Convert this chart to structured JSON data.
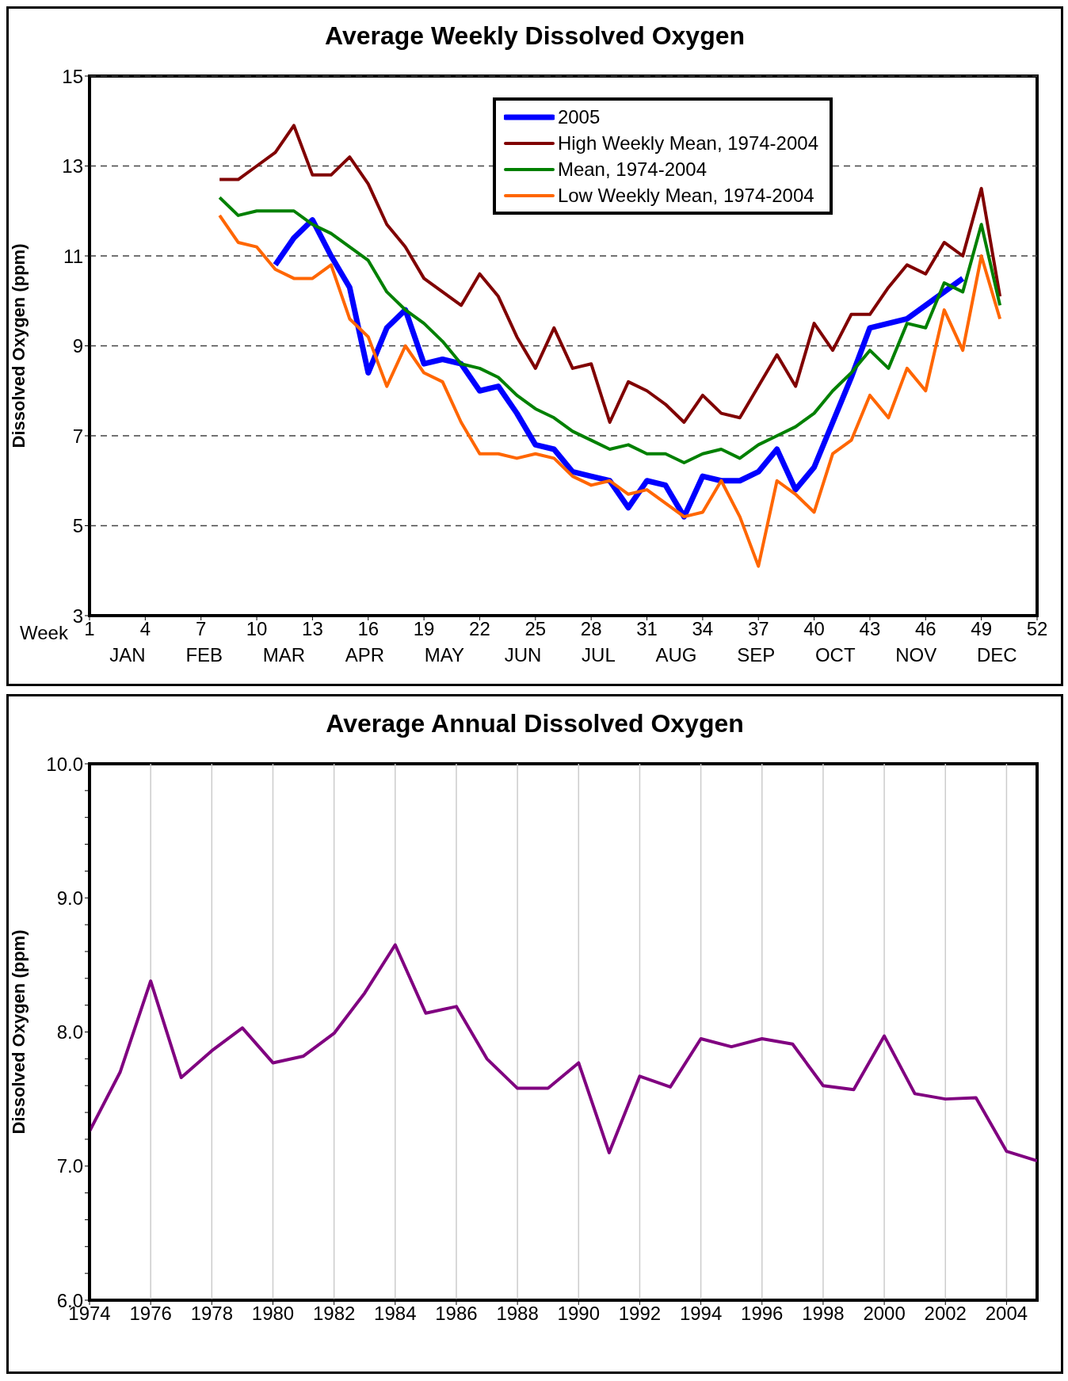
{
  "chart_data": [
    {
      "type": "line",
      "title": "Average Weekly Dissolved Oxygen",
      "xlabel": "Week",
      "ylabel": "Dissolved Oxygen (ppm)",
      "x": [
        8,
        9,
        10,
        11,
        12,
        13,
        14,
        15,
        16,
        17,
        18,
        19,
        20,
        21,
        22,
        23,
        24,
        25,
        26,
        27,
        28,
        29,
        30,
        31,
        32,
        33,
        34,
        35,
        36,
        37,
        38,
        39,
        40,
        41,
        42,
        43,
        44,
        45,
        46,
        47,
        48,
        49,
        50
      ],
      "series": [
        {
          "name": "2005",
          "color": "#0000ff",
          "x": [
            11,
            12,
            13,
            14,
            15,
            16,
            17,
            18,
            19,
            20,
            21,
            22,
            23,
            24,
            25,
            26,
            27,
            28,
            29,
            30,
            31,
            32,
            33,
            34,
            35,
            36,
            37,
            38,
            39,
            40,
            41,
            42,
            43,
            44,
            45,
            46,
            47,
            48
          ],
          "values": [
            10.8,
            11.4,
            11.8,
            11.0,
            10.3,
            8.4,
            9.4,
            9.8,
            8.6,
            8.7,
            8.6,
            8.0,
            8.1,
            7.5,
            6.8,
            6.7,
            6.2,
            6.1,
            6.0,
            5.4,
            6.0,
            5.9,
            5.2,
            6.1,
            6.0,
            6.0,
            6.2,
            6.7,
            5.8,
            6.3,
            7.3,
            8.3,
            9.4,
            9.5,
            9.6,
            9.9,
            10.2,
            10.5
          ]
        },
        {
          "name": "High Weekly Mean, 1974-2004",
          "color": "#800000",
          "values": [
            12.7,
            12.7,
            13.0,
            13.3,
            13.9,
            12.8,
            12.8,
            13.2,
            12.6,
            11.7,
            11.2,
            10.5,
            10.2,
            9.9,
            10.6,
            10.1,
            9.2,
            8.5,
            9.4,
            8.5,
            8.6,
            7.3,
            8.2,
            8.0,
            7.7,
            7.3,
            7.9,
            7.5,
            7.4,
            8.1,
            8.8,
            8.1,
            9.5,
            8.9,
            9.7,
            9.7,
            10.3,
            10.8,
            10.6,
            11.3,
            11.0,
            12.5,
            10.1
          ]
        },
        {
          "name": "Mean, 1974-2004",
          "color": "#008000",
          "values": [
            12.3,
            11.9,
            12.0,
            12.0,
            12.0,
            11.7,
            11.5,
            11.2,
            10.9,
            10.2,
            9.8,
            9.5,
            9.1,
            8.6,
            8.5,
            8.3,
            7.9,
            7.6,
            7.4,
            7.1,
            6.9,
            6.7,
            6.8,
            6.6,
            6.6,
            6.4,
            6.6,
            6.7,
            6.5,
            6.8,
            7.0,
            7.2,
            7.5,
            8.0,
            8.4,
            8.9,
            8.5,
            9.5,
            9.4,
            10.4,
            10.2,
            11.7,
            9.9
          ]
        },
        {
          "name": "Low Weekly Mean, 1974-2004",
          "color": "#ff6600",
          "values": [
            11.9,
            11.3,
            11.2,
            10.7,
            10.5,
            10.5,
            10.8,
            9.6,
            9.2,
            8.1,
            9.0,
            8.4,
            8.2,
            7.3,
            6.6,
            6.6,
            6.5,
            6.6,
            6.5,
            6.1,
            5.9,
            6.0,
            5.7,
            5.8,
            5.5,
            5.2,
            5.3,
            6.0,
            5.2,
            4.1,
            6.0,
            5.7,
            5.3,
            6.6,
            6.9,
            7.9,
            7.4,
            8.5,
            8.0,
            9.8,
            8.9,
            11.0,
            9.6
          ]
        }
      ],
      "xlim": [
        1,
        52
      ],
      "xticks": [
        1,
        4,
        7,
        10,
        13,
        16,
        19,
        22,
        25,
        28,
        31,
        34,
        37,
        40,
        43,
        46,
        49,
        52
      ],
      "annotations": [
        "JAN",
        "FEB",
        "MAR",
        "APR",
        "MAY",
        "JUN",
        "JUL",
        "AUG",
        "SEP",
        "OCT",
        "NOV",
        "DEC"
      ],
      "ylim": [
        3,
        15
      ],
      "yticks": [
        3,
        5,
        7,
        9,
        11,
        13,
        15
      ],
      "grid": "y",
      "legend": "top right",
      "line_style": "solid",
      "marker": "none"
    },
    {
      "type": "line",
      "title": "Average Annual Dissolved Oxygen",
      "ylabel": "Dissolved Oxygen (ppm)",
      "x": [
        1974,
        1975,
        1976,
        1977,
        1978,
        1979,
        1980,
        1981,
        1982,
        1983,
        1984,
        1985,
        1986,
        1987,
        1988,
        1989,
        1990,
        1991,
        1992,
        1993,
        1994,
        1995,
        1996,
        1997,
        1998,
        1999,
        2000,
        2001,
        2002,
        2003,
        2004,
        2005
      ],
      "series": [
        {
          "color": "#800080",
          "values": [
            7.26,
            7.7,
            8.38,
            7.66,
            7.86,
            8.03,
            7.77,
            7.82,
            7.99,
            8.29,
            8.65,
            8.14,
            8.19,
            7.8,
            7.58,
            7.58,
            7.77,
            7.1,
            7.67,
            7.59,
            7.95,
            7.89,
            7.95,
            7.91,
            7.6,
            7.57,
            7.97,
            7.54,
            7.5,
            7.51,
            7.11,
            7.04
          ]
        }
      ],
      "xlim": [
        1974,
        2005
      ],
      "xticks": [
        1974,
        1976,
        1978,
        1980,
        1982,
        1984,
        1986,
        1988,
        1990,
        1992,
        1994,
        1996,
        1998,
        2000,
        2002,
        2004
      ],
      "ylim": [
        6,
        10
      ],
      "yticks": [
        {
          "value": 6,
          "label": "6.0"
        },
        {
          "value": 6.2,
          "label": null
        },
        {
          "value": 6.4,
          "label": null
        },
        {
          "value": 6.6,
          "label": null
        },
        {
          "value": 6.8,
          "label": null
        },
        {
          "value": 7,
          "label": "7.0"
        },
        {
          "value": 7.2,
          "label": null
        },
        {
          "value": 7.4,
          "label": null
        },
        {
          "value": 7.6,
          "label": null
        },
        {
          "value": 7.8,
          "label": null
        },
        {
          "value": 8,
          "label": "8.0"
        },
        {
          "value": 8.2,
          "label": null
        },
        {
          "value": 8.4,
          "label": null
        },
        {
          "value": 8.6,
          "label": null
        },
        {
          "value": 8.8,
          "label": null
        },
        {
          "value": 9,
          "label": "9.0"
        },
        {
          "value": 9.2,
          "label": null
        },
        {
          "value": 9.4,
          "label": null
        },
        {
          "value": 9.6,
          "label": null
        },
        {
          "value": 9.8,
          "label": null
        },
        {
          "value": 10,
          "label": "10.0"
        }
      ],
      "grid": "x",
      "legend": false,
      "line_style": "solid",
      "marker": "none"
    }
  ]
}
